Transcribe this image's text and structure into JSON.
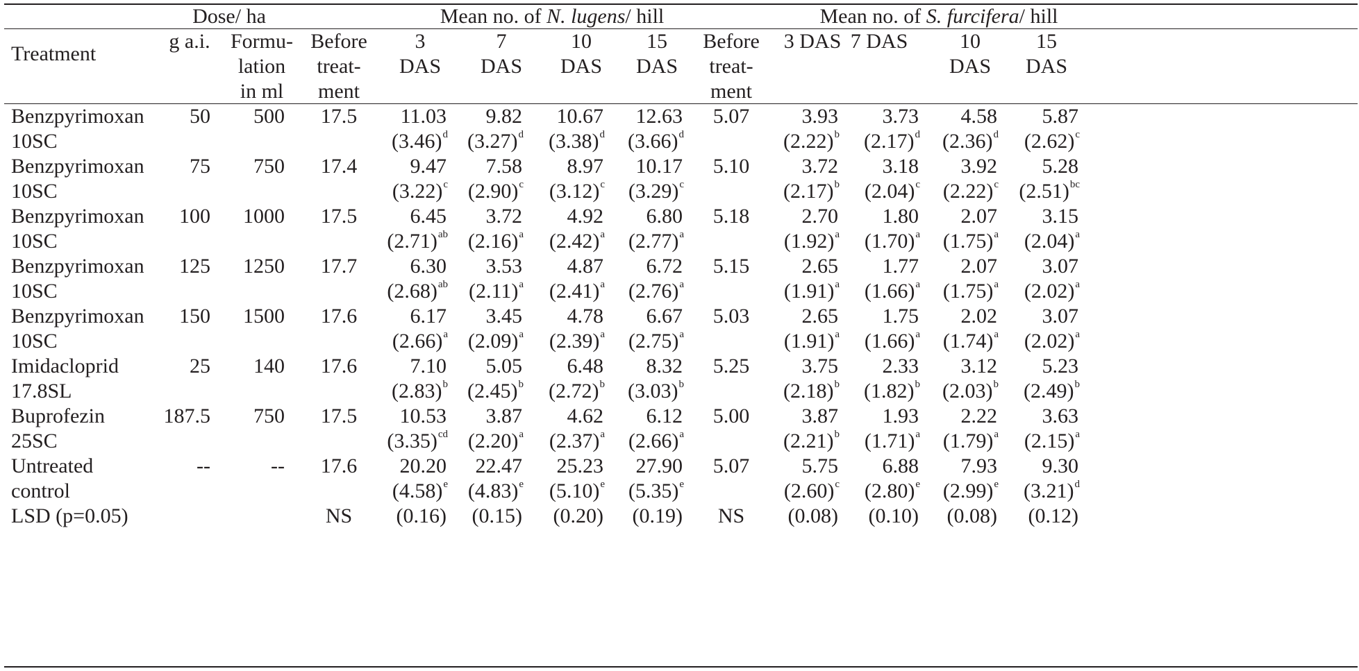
{
  "header": {
    "treatment": "Treatment",
    "dose_group": "Dose/ ha",
    "gai": "g a.i.",
    "formulation": [
      "Formu-",
      "lation",
      "in ml"
    ],
    "nl_group": {
      "pre": "Mean no. of ",
      "species": "N. lugens",
      "post": "/ hill"
    },
    "sf_group": {
      "pre": "Mean no. of ",
      "species": "S. furcifera",
      "post": "/ hill"
    },
    "before": [
      "Before",
      "treat-",
      "ment"
    ],
    "nl_days": [
      [
        "3",
        "DAS"
      ],
      [
        "7",
        "DAS"
      ],
      [
        "10",
        "DAS"
      ],
      [
        "15",
        "DAS"
      ]
    ],
    "sf_days": [
      [
        "3 DAS"
      ],
      [
        "7 DAS"
      ],
      [
        "10",
        "DAS"
      ],
      [
        "15",
        "DAS"
      ]
    ]
  },
  "rows": [
    {
      "name": [
        "Benzpyrimoxan",
        "10SC"
      ],
      "gai": "50",
      "form": "500",
      "nl_before": "17.5",
      "nl": [
        [
          "11.03",
          "(3.46)",
          "d"
        ],
        [
          "9.82",
          "(3.27)",
          "d"
        ],
        [
          "10.67",
          "(3.38)",
          "d"
        ],
        [
          "12.63",
          "(3.66)",
          "d"
        ]
      ],
      "sf_before": "5.07",
      "sf": [
        [
          "3.93",
          "(2.22)",
          "b"
        ],
        [
          "3.73",
          "(2.17)",
          "d"
        ],
        [
          "4.58",
          "(2.36)",
          "d"
        ],
        [
          "5.87",
          "(2.62)",
          "c"
        ]
      ]
    },
    {
      "name": [
        "Benzpyrimoxan",
        "10SC"
      ],
      "gai": "75",
      "form": "750",
      "nl_before": "17.4",
      "nl": [
        [
          "9.47",
          "(3.22)",
          "c"
        ],
        [
          "7.58",
          "(2.90)",
          "c"
        ],
        [
          "8.97",
          "(3.12)",
          "c"
        ],
        [
          "10.17",
          "(3.29)",
          "c"
        ]
      ],
      "sf_before": "5.10",
      "sf": [
        [
          "3.72",
          "(2.17)",
          "b"
        ],
        [
          "3.18",
          "(2.04)",
          "c"
        ],
        [
          "3.92",
          "(2.22)",
          "c"
        ],
        [
          "5.28",
          "(2.51)",
          "bc"
        ]
      ]
    },
    {
      "name": [
        "Benzpyrimoxan",
        "10SC"
      ],
      "gai": "100",
      "form": "1000",
      "nl_before": "17.5",
      "nl": [
        [
          "6.45",
          "(2.71)",
          "ab"
        ],
        [
          "3.72",
          "(2.16)",
          "a"
        ],
        [
          "4.92",
          "(2.42)",
          "a"
        ],
        [
          "6.80",
          "(2.77)",
          "a"
        ]
      ],
      "sf_before": "5.18",
      "sf": [
        [
          "2.70",
          "(1.92)",
          "a"
        ],
        [
          "1.80",
          "(1.70)",
          "a"
        ],
        [
          "2.07",
          "(1.75)",
          "a"
        ],
        [
          "3.15",
          "(2.04)",
          "a"
        ]
      ]
    },
    {
      "name": [
        "Benzpyrimoxan",
        "10SC"
      ],
      "gai": "125",
      "form": "1250",
      "nl_before": "17.7",
      "nl": [
        [
          "6.30",
          "(2.68)",
          "ab"
        ],
        [
          "3.53",
          "(2.11)",
          "a"
        ],
        [
          "4.87",
          "(2.41)",
          "a"
        ],
        [
          "6.72",
          "(2.76)",
          "a"
        ]
      ],
      "sf_before": "5.15",
      "sf": [
        [
          "2.65",
          "(1.91)",
          "a"
        ],
        [
          "1.77",
          "(1.66)",
          "a"
        ],
        [
          "2.07",
          "(1.75)",
          "a"
        ],
        [
          "3.07",
          "(2.02)",
          "a"
        ]
      ]
    },
    {
      "name": [
        "Benzpyrimoxan",
        "10SC"
      ],
      "gai": "150",
      "form": "1500",
      "nl_before": "17.6",
      "nl": [
        [
          "6.17",
          "(2.66)",
          "a"
        ],
        [
          "3.45",
          "(2.09)",
          "a"
        ],
        [
          "4.78",
          "(2.39)",
          "a"
        ],
        [
          "6.67",
          "(2.75)",
          "a"
        ]
      ],
      "sf_before": "5.03",
      "sf": [
        [
          "2.65",
          "(1.91)",
          "a"
        ],
        [
          "1.75",
          "(1.66)",
          "a"
        ],
        [
          "2.02",
          "(1.74)",
          "a"
        ],
        [
          "3.07",
          "(2.02)",
          "a"
        ]
      ]
    },
    {
      "name": [
        "Imidacloprid",
        "17.8SL"
      ],
      "gai": "25",
      "form": "140",
      "nl_before": "17.6",
      "nl": [
        [
          "7.10",
          "(2.83)",
          "b"
        ],
        [
          "5.05",
          "(2.45)",
          "b"
        ],
        [
          "6.48",
          "(2.72)",
          "b"
        ],
        [
          "8.32",
          "(3.03)",
          "b"
        ]
      ],
      "sf_before": "5.25",
      "sf": [
        [
          "3.75",
          "(2.18)",
          "b"
        ],
        [
          "2.33",
          "(1.82)",
          "b"
        ],
        [
          "3.12",
          "(2.03)",
          "b"
        ],
        [
          "5.23",
          "(2.49)",
          "b"
        ]
      ]
    },
    {
      "name": [
        "Buprofezin",
        "25SC"
      ],
      "gai": "187.5",
      "form": "750",
      "nl_before": "17.5",
      "nl": [
        [
          "10.53",
          "(3.35)",
          "cd"
        ],
        [
          "3.87",
          "(2.20)",
          "a"
        ],
        [
          "4.62",
          "(2.37)",
          "a"
        ],
        [
          "6.12",
          "(2.66)",
          "a"
        ]
      ],
      "sf_before": "5.00",
      "sf": [
        [
          "3.87",
          "(2.21)",
          "b"
        ],
        [
          "1.93",
          "(1.71)",
          "a"
        ],
        [
          "2.22",
          "(1.79)",
          "a"
        ],
        [
          "3.63",
          "(2.15)",
          "a"
        ]
      ]
    },
    {
      "name": [
        "Untreated",
        "control"
      ],
      "gai": "--",
      "form": "--",
      "nl_before": "17.6",
      "nl": [
        [
          "20.20",
          "(4.58)",
          "e"
        ],
        [
          "22.47",
          "(4.83)",
          "e"
        ],
        [
          "25.23",
          "(5.10)",
          "e"
        ],
        [
          "27.90",
          "(5.35)",
          "e"
        ]
      ],
      "sf_before": "5.07",
      "sf": [
        [
          "5.75",
          "(2.60)",
          "c"
        ],
        [
          "6.88",
          "(2.80)",
          "e"
        ],
        [
          "7.93",
          "(2.99)",
          "e"
        ],
        [
          "9.30",
          "(3.21)",
          "d"
        ]
      ]
    }
  ],
  "lsd": {
    "label": "LSD (p=0.05)",
    "nl_before": "NS",
    "nl": [
      "(0.16)",
      "(0.15)",
      "(0.20)",
      "(0.19)"
    ],
    "sf_before": "NS",
    "sf": [
      "(0.08)",
      "(0.10)",
      "(0.08)",
      "(0.12)"
    ]
  }
}
